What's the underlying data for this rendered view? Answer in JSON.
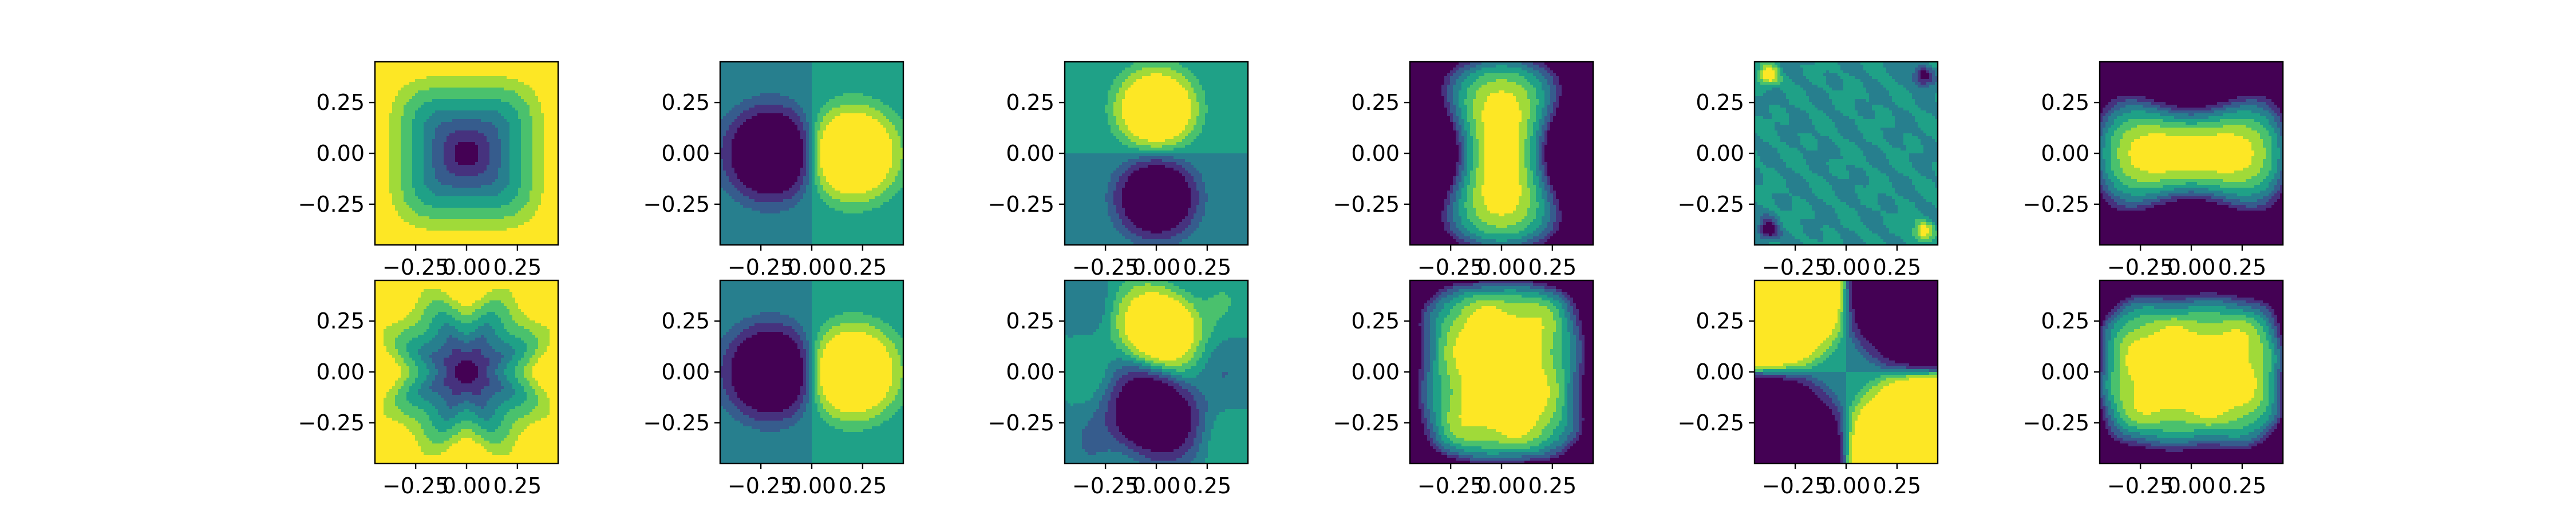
{
  "figure": {
    "background": "#ffffff"
  },
  "chart_data": {
    "type": "heatmap",
    "subtype": "filled-contour",
    "layout": "2x6 grid of contour subplots",
    "colormap": "viridis",
    "colormap_stops": [
      "#440154",
      "#46327e",
      "#365c8d",
      "#277f8e",
      "#1fa187",
      "#4ac16d",
      "#a0da39",
      "#fde725"
    ],
    "levels": 8,
    "xlim": [
      -0.45,
      0.45
    ],
    "ylim": [
      -0.45,
      0.45
    ],
    "xticks": [
      -0.25,
      0.0,
      0.25
    ],
    "xtick_labels": [
      "−0.25",
      "0.00",
      "0.25"
    ],
    "yticks": [
      0.25,
      0.0,
      -0.25
    ],
    "ytick_labels": [
      "0.25",
      "0.00",
      "−0.25"
    ],
    "grid": false,
    "panels": [
      {
        "row": 0,
        "col": 0,
        "pattern": "bowl-square",
        "dir": 1
      },
      {
        "row": 0,
        "col": 1,
        "pattern": "dipole-x",
        "dir": 1
      },
      {
        "row": 0,
        "col": 2,
        "pattern": "dipole-y",
        "dir": 1
      },
      {
        "row": 0,
        "col": 3,
        "pattern": "hourglass-x",
        "dir": 1
      },
      {
        "row": 0,
        "col": 4,
        "pattern": "corner-noise",
        "dir": 1
      },
      {
        "row": 0,
        "col": 5,
        "pattern": "hourglass-y",
        "dir": 1
      },
      {
        "row": 1,
        "col": 0,
        "pattern": "bowl-star",
        "dir": 1
      },
      {
        "row": 1,
        "col": 1,
        "pattern": "dipole-x",
        "dir": 1
      },
      {
        "row": 1,
        "col": 2,
        "pattern": "dipole-y-wobble",
        "dir": 1
      },
      {
        "row": 1,
        "col": 3,
        "pattern": "blob-x",
        "dir": 1
      },
      {
        "row": 1,
        "col": 4,
        "pattern": "quadrupole",
        "dir": 1
      },
      {
        "row": 1,
        "col": 5,
        "pattern": "blob-y",
        "dir": 1
      }
    ]
  }
}
